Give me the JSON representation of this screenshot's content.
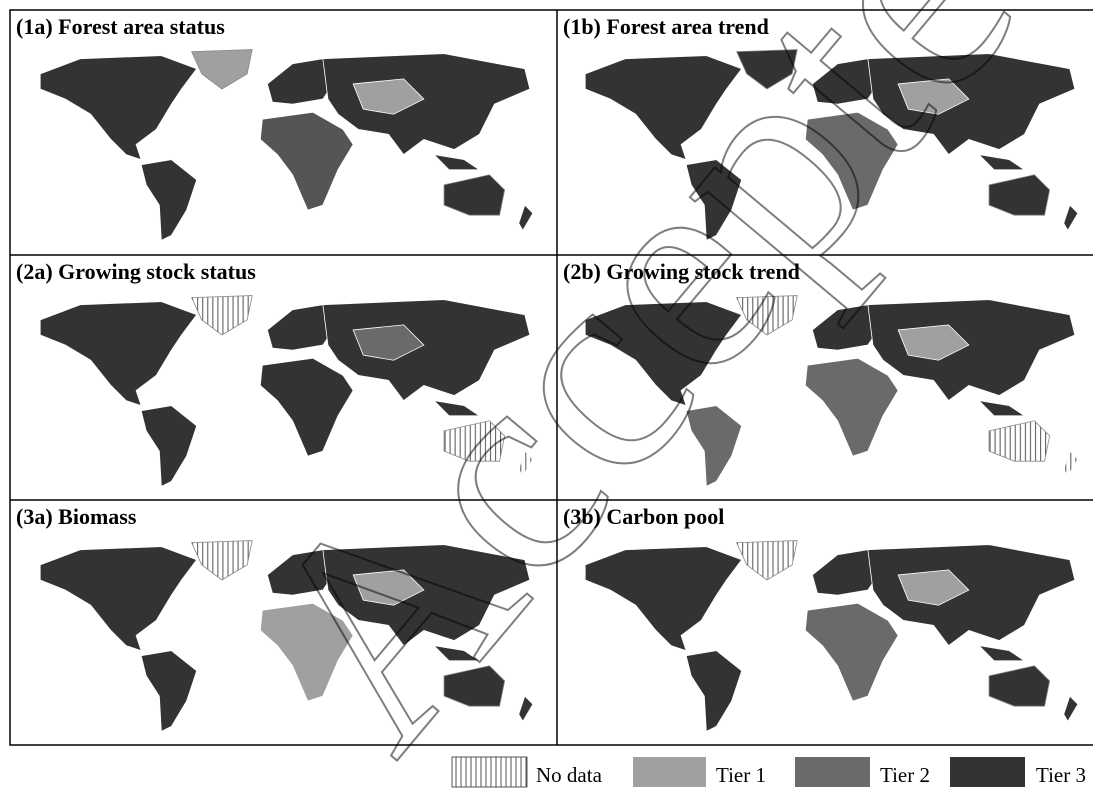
{
  "panels": [
    {
      "title": "(1a) Forest area status"
    },
    {
      "title": "(1b) Forest area trend"
    },
    {
      "title": "(2a) Growing stock status"
    },
    {
      "title": "(2b) Growing stock trend"
    },
    {
      "title": "(3a) Biomass"
    },
    {
      "title": "(3b) Carbon pool"
    }
  ],
  "legend": [
    {
      "label": "No data"
    },
    {
      "label": "Tier 1"
    },
    {
      "label": "Tier 2"
    },
    {
      "label": "Tier 3"
    }
  ],
  "watermark": "Accepted Manuscript"
}
